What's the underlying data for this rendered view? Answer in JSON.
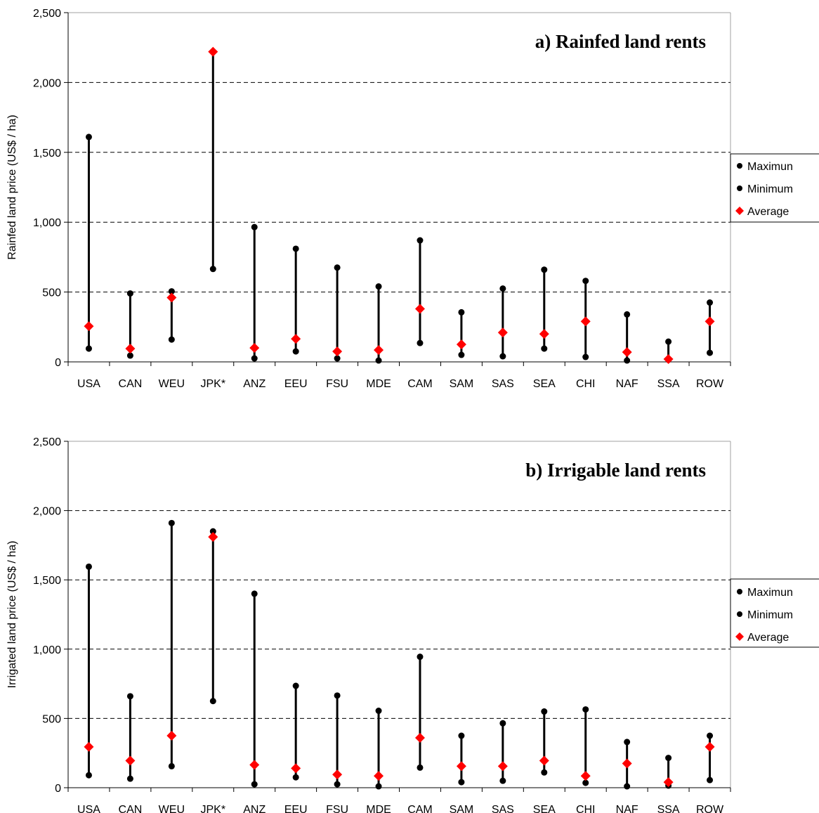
{
  "chart_data": [
    {
      "type": "range",
      "title": "a) Rainfed land rents",
      "ylabel": "Rainfed land price (US$ / ha)",
      "ylim": [
        0,
        2500
      ],
      "yticks": [
        "0",
        "500",
        "1,000",
        "1,500",
        "2,000",
        "2,500"
      ],
      "grid": true,
      "legend_position": "right",
      "categories": [
        "USA",
        "CAN",
        "WEU",
        "JPK*",
        "ANZ",
        "EEU",
        "FSU",
        "MDE",
        "CAM",
        "SAM",
        "SAS",
        "SEA",
        "CHI",
        "NAF",
        "SSA",
        "ROW"
      ],
      "series": [
        {
          "name": "Maximun",
          "marker": "circle",
          "color": "#000000",
          "values": [
            1610,
            490,
            505,
            2220,
            965,
            810,
            675,
            540,
            870,
            355,
            525,
            660,
            580,
            340,
            145,
            425
          ]
        },
        {
          "name": "Minimum",
          "marker": "circle",
          "color": "#000000",
          "values": [
            95,
            45,
            160,
            665,
            25,
            75,
            25,
            10,
            135,
            50,
            40,
            95,
            35,
            10,
            15,
            65
          ]
        },
        {
          "name": "Average",
          "marker": "diamond",
          "color": "#ff0000",
          "values": [
            255,
            95,
            460,
            2220,
            100,
            165,
            75,
            85,
            380,
            125,
            210,
            200,
            290,
            70,
            20,
            290
          ]
        }
      ]
    },
    {
      "type": "range",
      "title": "b) Irrigable land rents",
      "ylabel": "Irrigated land price (US$ / ha)",
      "ylim": [
        0,
        2500
      ],
      "yticks": [
        "0",
        "500",
        "1,000",
        "1,500",
        "2,000",
        "2,500"
      ],
      "grid": true,
      "legend_position": "right",
      "categories": [
        "USA",
        "CAN",
        "WEU",
        "JPK*",
        "ANZ",
        "EEU",
        "FSU",
        "MDE",
        "CAM",
        "SAM",
        "SAS",
        "SEA",
        "CHI",
        "NAF",
        "SSA",
        "ROW"
      ],
      "series": [
        {
          "name": "Maximun",
          "marker": "circle",
          "color": "#000000",
          "values": [
            1595,
            660,
            1910,
            1850,
            1400,
            735,
            665,
            555,
            945,
            375,
            465,
            550,
            565,
            330,
            215,
            375
          ]
        },
        {
          "name": "Minimum",
          "marker": "circle",
          "color": "#000000",
          "values": [
            90,
            65,
            155,
            625,
            25,
            75,
            25,
            10,
            145,
            40,
            50,
            110,
            35,
            10,
            15,
            55
          ]
        },
        {
          "name": "Average",
          "marker": "diamond",
          "color": "#ff0000",
          "values": [
            295,
            195,
            375,
            1810,
            165,
            140,
            95,
            85,
            360,
            155,
            155,
            195,
            85,
            175,
            40,
            295
          ]
        }
      ]
    }
  ]
}
